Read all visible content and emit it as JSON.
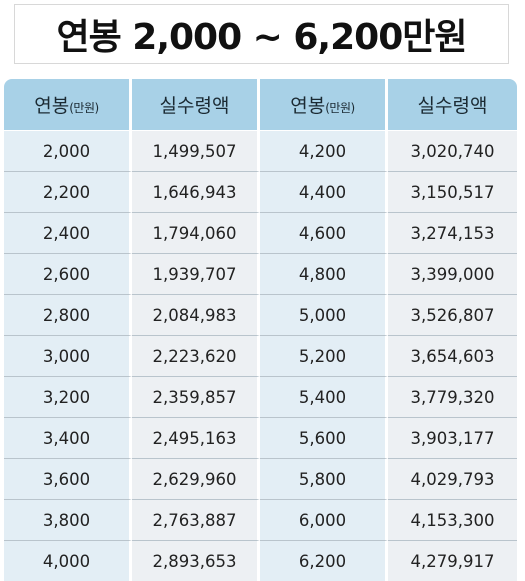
{
  "title": "연봉 2,000 ~ 6,200만원",
  "headers": [
    {
      "label": "연봉",
      "unit": "(만원)"
    },
    {
      "label": "실수령액",
      "unit": ""
    },
    {
      "label": "연봉",
      "unit": "(만원)"
    },
    {
      "label": "실수령액",
      "unit": ""
    }
  ],
  "rows": [
    [
      "2,000",
      "1,499,507",
      "4,200",
      "3,020,740"
    ],
    [
      "2,200",
      "1,646,943",
      "4,400",
      "3,150,517"
    ],
    [
      "2,400",
      "1,794,060",
      "4,600",
      "3,274,153"
    ],
    [
      "2,600",
      "1,939,707",
      "4,800",
      "3,399,000"
    ],
    [
      "2,800",
      "2,084,983",
      "5,000",
      "3,526,807"
    ],
    [
      "3,000",
      "2,223,620",
      "5,200",
      "3,654,603"
    ],
    [
      "3,200",
      "2,359,857",
      "5,400",
      "3,779,320"
    ],
    [
      "3,400",
      "2,495,163",
      "5,600",
      "3,903,177"
    ],
    [
      "3,600",
      "2,629,960",
      "5,800",
      "4,029,793"
    ],
    [
      "3,800",
      "2,763,887",
      "6,000",
      "4,153,300"
    ],
    [
      "4,000",
      "2,893,653",
      "6,200",
      "4,279,917"
    ]
  ]
}
